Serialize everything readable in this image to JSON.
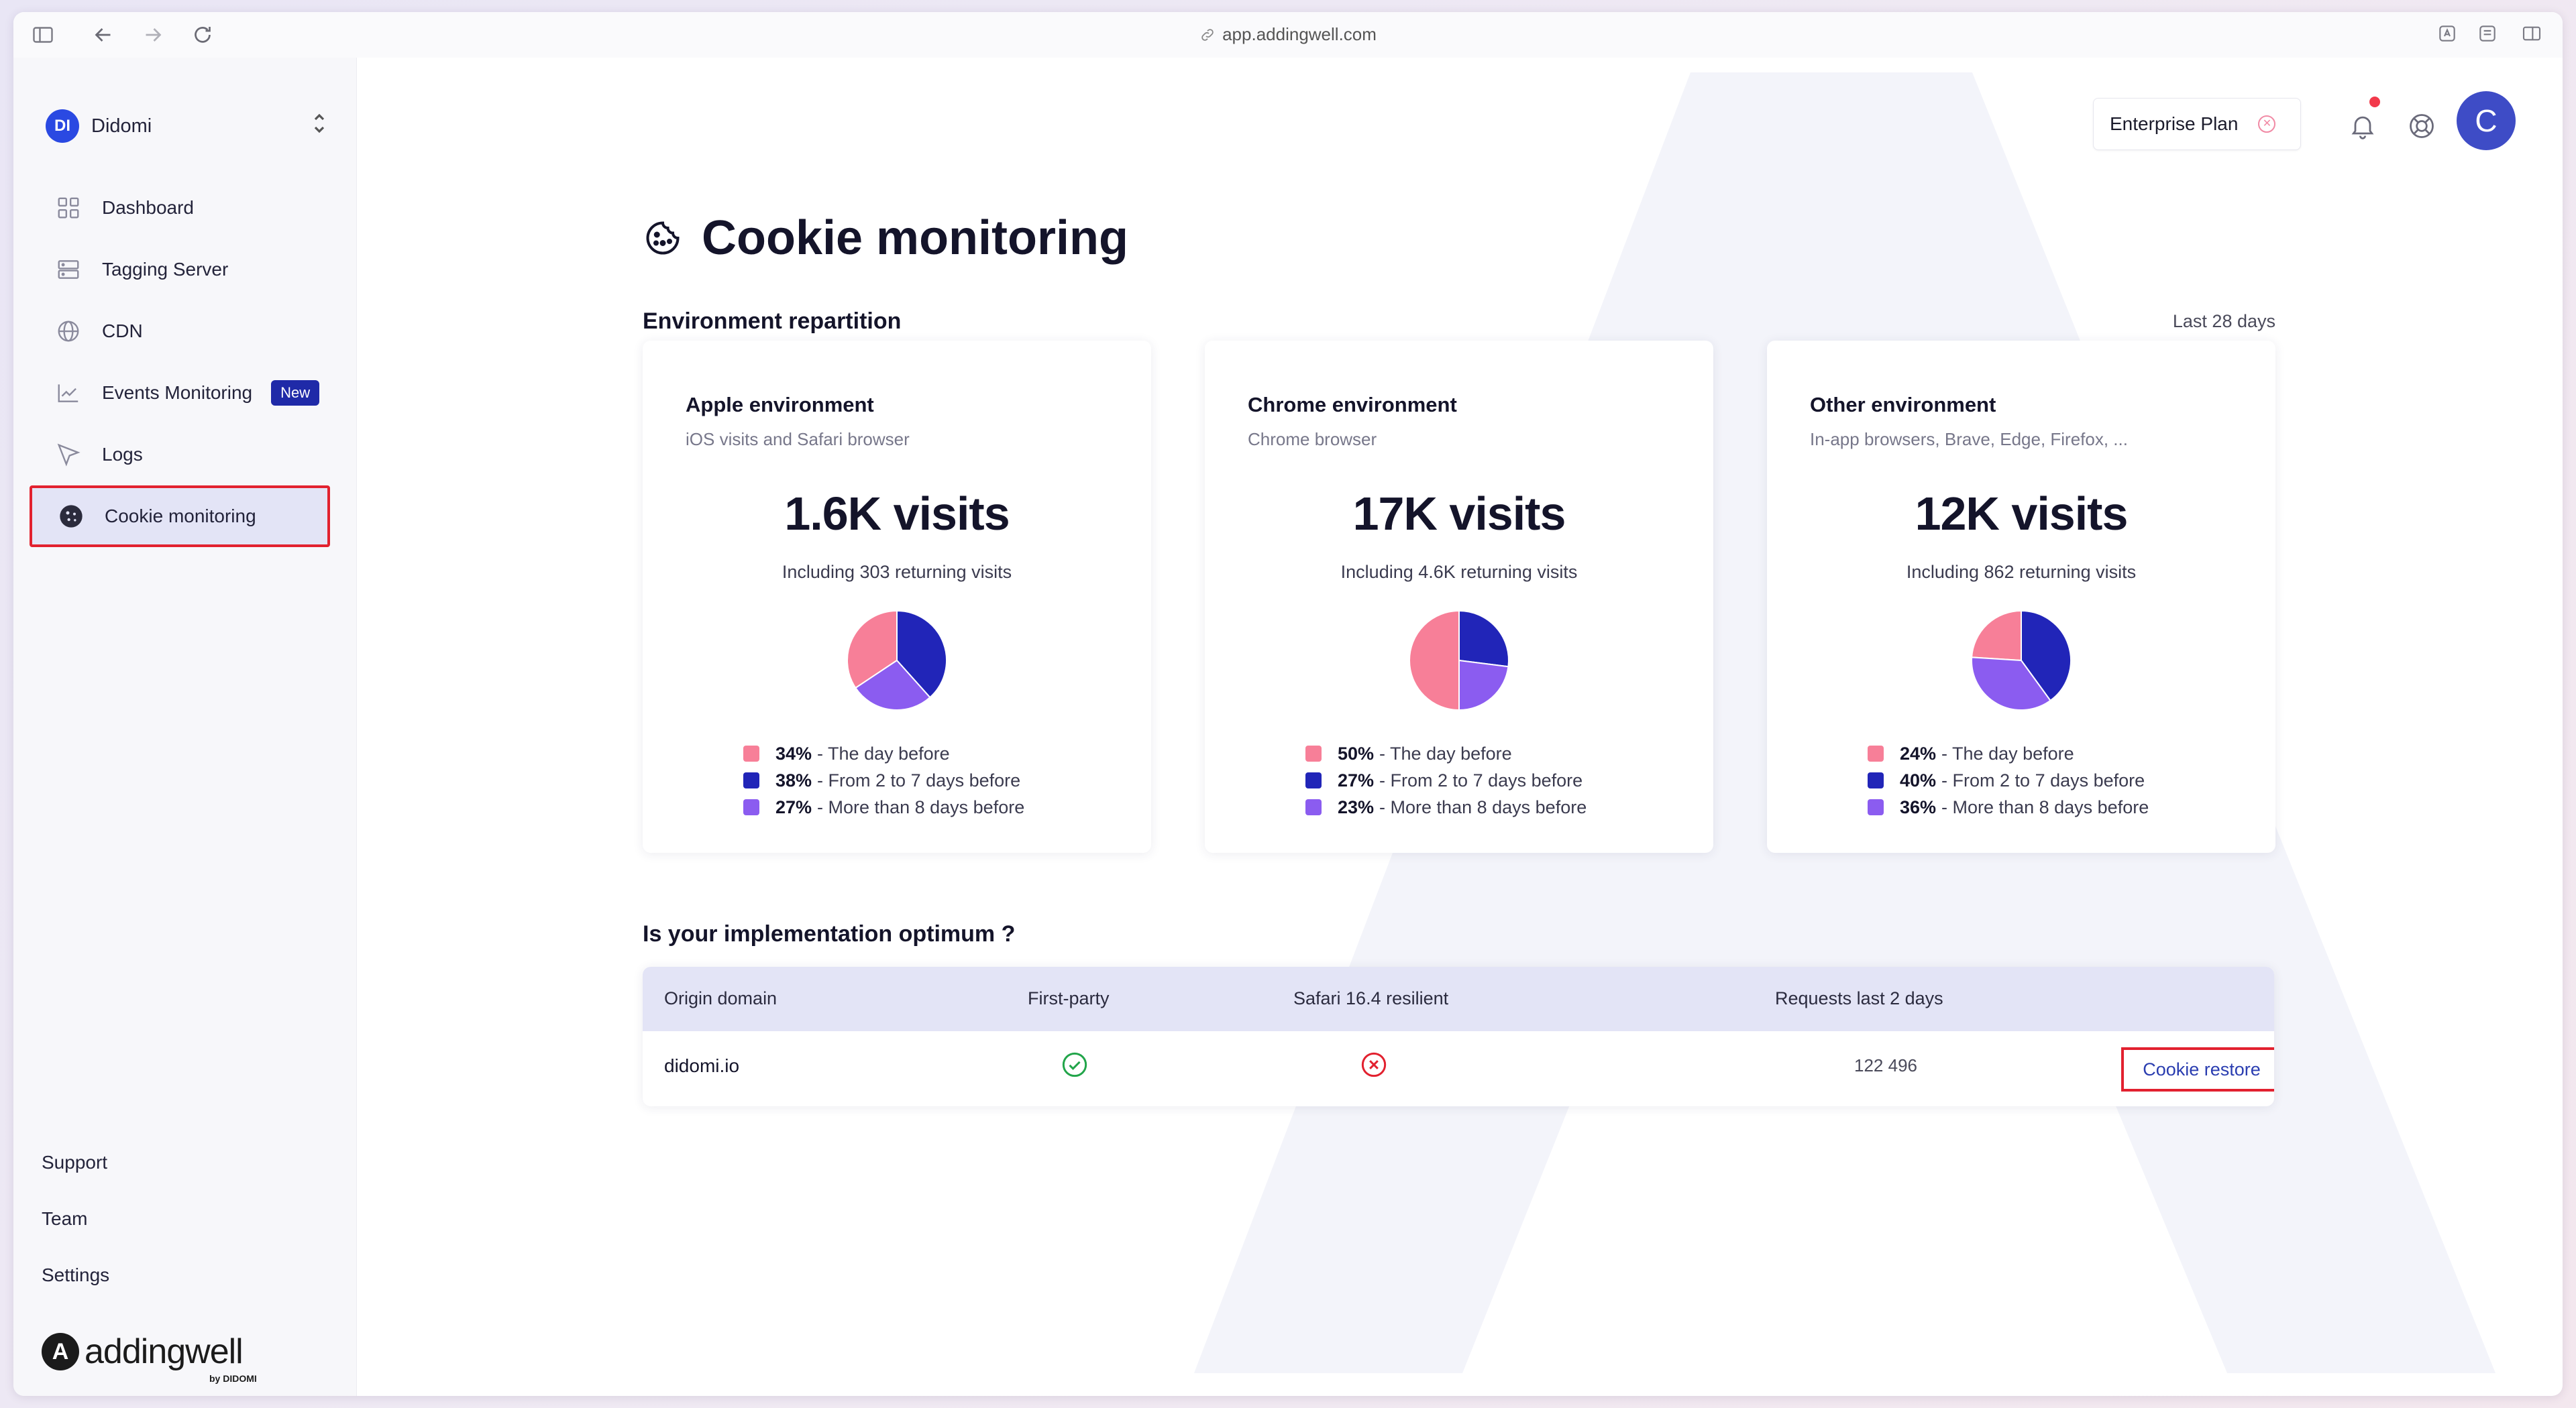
{
  "browser": {
    "url": "app.addingwell.com"
  },
  "sidebar": {
    "org": {
      "initials": "DI",
      "name": "Didomi"
    },
    "items": [
      {
        "label": "Dashboard",
        "icon": "grid-icon"
      },
      {
        "label": "Tagging Server",
        "icon": "server-icon"
      },
      {
        "label": "CDN",
        "icon": "globe-icon"
      },
      {
        "label": "Events Monitoring",
        "icon": "line-chart-icon",
        "badge": "New"
      },
      {
        "label": "Logs",
        "icon": "cursor-icon"
      },
      {
        "label": "Cookie monitoring",
        "icon": "cookie-icon",
        "active": true
      }
    ],
    "bottom": [
      "Support",
      "Team",
      "Settings"
    ],
    "brand": {
      "mark": "A",
      "name": "addingwell",
      "by": "by DIDOMI"
    }
  },
  "topbar": {
    "plan": "Enterprise Plan",
    "avatar_initial": "C"
  },
  "page": {
    "title": "Cookie monitoring",
    "section_title": "Environment repartition",
    "period": "Last 28 days",
    "impl_title": "Is your implementation optimum ?"
  },
  "colors": {
    "day_before": "#f77f98",
    "two_to_seven": "#2125b8",
    "more_than_eight": "#8b5cf0",
    "accent": "#1f2aa8",
    "highlight": "#e2212f"
  },
  "cards": [
    {
      "title": "Apple environment",
      "subtitle": "iOS visits and Safari browser",
      "visits": "1.6K visits",
      "returning": "Including 303 returning visits",
      "legend": [
        {
          "pct": "34%",
          "label": "- The day before",
          "value": 34
        },
        {
          "pct": "38%",
          "label": "- From 2 to 7 days before",
          "value": 38
        },
        {
          "pct": "27%",
          "label": "- More than 8 days before",
          "value": 27
        }
      ]
    },
    {
      "title": "Chrome environment",
      "subtitle": "Chrome browser",
      "visits": "17K visits",
      "returning": "Including 4.6K returning visits",
      "legend": [
        {
          "pct": "50%",
          "label": "- The day before",
          "value": 50
        },
        {
          "pct": "27%",
          "label": "- From 2 to 7 days before",
          "value": 27
        },
        {
          "pct": "23%",
          "label": "- More than 8 days before",
          "value": 23
        }
      ]
    },
    {
      "title": "Other environment",
      "subtitle": "In-app browsers, Brave, Edge, Firefox, ...",
      "visits": "12K visits",
      "returning": "Including 862 returning visits",
      "legend": [
        {
          "pct": "24%",
          "label": "- The day before",
          "value": 24
        },
        {
          "pct": "40%",
          "label": "- From 2 to 7 days before",
          "value": 40
        },
        {
          "pct": "36%",
          "label": "- More than 8 days before",
          "value": 36
        }
      ]
    }
  ],
  "table": {
    "headers": [
      "Origin domain",
      "First-party",
      "Safari 16.4 resilient",
      "Requests last 2 days"
    ],
    "rows": [
      {
        "domain": "didomi.io",
        "first_party": "check-circle-icon",
        "safari_resilient": "x-circle-icon",
        "requests": "122 496",
        "action": "Cookie restore"
      }
    ]
  }
}
